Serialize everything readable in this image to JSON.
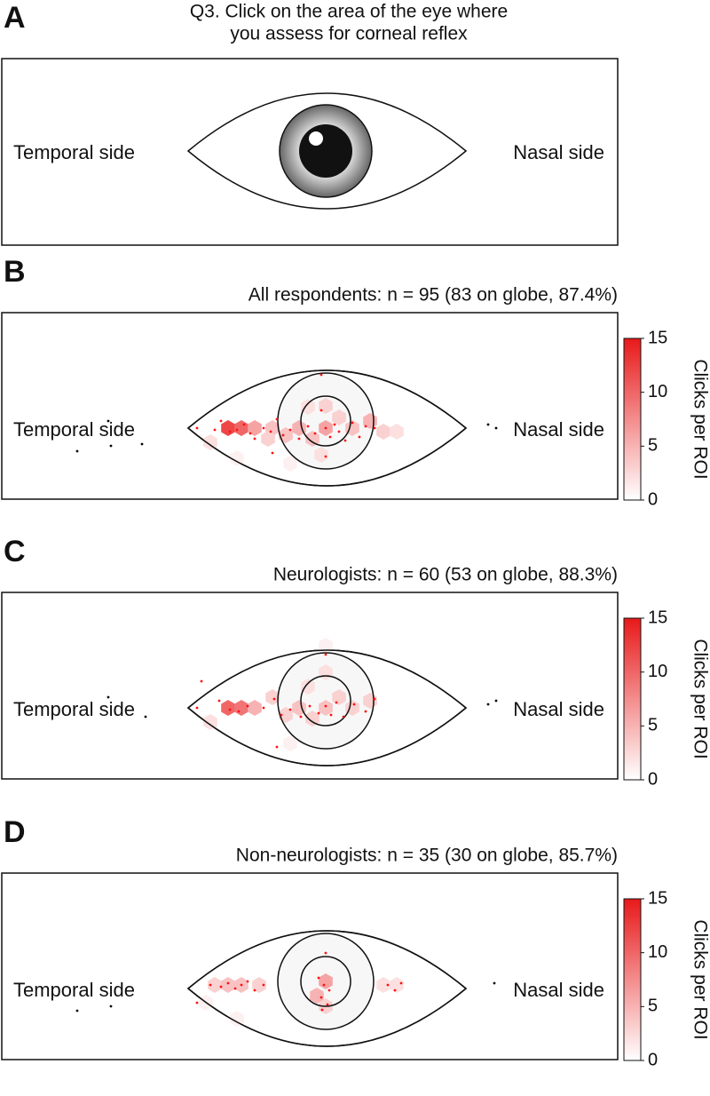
{
  "chart_data": [
    {
      "type": "diagram",
      "letter": "A",
      "title": [
        "Q3. Click on the area of the eye where",
        "you assess for corneal reflex"
      ],
      "left_label": "Temporal side",
      "right_label": "Nasal side"
    },
    {
      "type": "hexbin",
      "letter": "B",
      "title": "All respondents: n = 95 (83 on globe, 87.4%)",
      "left_label": "Temporal side",
      "right_label": "Nasal side",
      "colorbar_label": "Clicks per ROI",
      "zlim": [
        0,
        15
      ],
      "zticks": [
        0,
        5,
        10,
        15
      ],
      "color": "#e8191a",
      "xlim": [
        -365,
        329
      ],
      "ylim": [
        -130,
        80
      ],
      "cells": {
        "x": [
          -110,
          -95,
          -80,
          -60,
          -45,
          -65,
          -30,
          -15,
          0,
          15,
          0,
          30,
          50,
          65,
          -130,
          -100,
          -40,
          -5,
          -20,
          80
        ],
        "y": [
          0,
          0,
          0,
          0,
          8,
          12,
          0,
          12,
          0,
          -12,
          -25,
          0,
          -8,
          4,
          16,
          34,
          40,
          30,
          -24,
          4
        ],
        "values": [
          12,
          10,
          6,
          4,
          4,
          3,
          5,
          4,
          6,
          3,
          3,
          4,
          5,
          3,
          2,
          1,
          1,
          2,
          2,
          2
        ]
      },
      "on_globe": {
        "color": "#ff1010",
        "x": [
          -145,
          -125,
          -118,
          -108,
          -100,
          -92,
          -85,
          -70,
          -62,
          -55,
          -48,
          -40,
          -30,
          -20,
          -12,
          -5,
          0,
          5,
          10,
          15,
          22,
          30,
          38,
          45,
          55,
          -5,
          0,
          -60,
          -80
        ],
        "y": [
          0,
          2,
          -8,
          4,
          2,
          -4,
          6,
          0,
          4,
          -10,
          8,
          2,
          12,
          -2,
          6,
          -20,
          0,
          10,
          -4,
          4,
          14,
          -6,
          10,
          -2,
          0,
          -60,
          32,
          28,
          12
        ]
      },
      "off_globe": {
        "color": "#000000",
        "x": [
          -245,
          -280,
          -242,
          -207,
          183,
          192
        ],
        "y": [
          -8,
          26,
          20,
          18,
          -4,
          0
        ]
      }
    },
    {
      "type": "hexbin",
      "letter": "C",
      "title": "Neurologists: n = 60 (53 on globe, 88.3%)",
      "left_label": "Temporal side",
      "right_label": "Nasal side",
      "colorbar_label": "Clicks per ROI",
      "zlim": [
        0,
        15
      ],
      "zticks": [
        0,
        5,
        10,
        15
      ],
      "color": "#e8191a",
      "xlim": [
        -365,
        329
      ],
      "ylim": [
        -130,
        80
      ],
      "cells": {
        "x": [
          -110,
          -95,
          -80,
          -60,
          -45,
          -30,
          -15,
          0,
          15,
          0,
          30,
          50,
          -130,
          -40,
          -20,
          0
        ],
        "y": [
          0,
          0,
          0,
          -12,
          8,
          0,
          12,
          0,
          -12,
          -40,
          0,
          -8,
          16,
          40,
          -24,
          -70
        ],
        "values": [
          10,
          9,
          5,
          3,
          3,
          4,
          3,
          4,
          3,
          2,
          3,
          3,
          2,
          1,
          2,
          1
        ]
      },
      "on_globe": {
        "color": "#ff1010",
        "x": [
          -145,
          -120,
          -108,
          -98,
          -88,
          -70,
          -58,
          -50,
          -40,
          -28,
          -18,
          -8,
          0,
          6,
          12,
          20,
          32,
          45,
          55,
          0,
          -55,
          -140
        ],
        "y": [
          0,
          -8,
          2,
          4,
          -2,
          0,
          -10,
          8,
          2,
          10,
          -2,
          6,
          -2,
          8,
          -6,
          10,
          -4,
          4,
          -10,
          -60,
          44,
          -30
        ]
      },
      "off_globe": {
        "color": "#000000",
        "x": [
          -245,
          -203,
          183,
          192
        ],
        "y": [
          -12,
          10,
          -4,
          -8
        ]
      }
    },
    {
      "type": "hexbin",
      "letter": "D",
      "title": "Non-neurologists: n = 35 (30 on globe, 85.7%)",
      "left_label": "Temporal side",
      "right_label": "Nasal side",
      "colorbar_label": "Clicks per ROI",
      "zlim": [
        0,
        15
      ],
      "zticks": [
        0,
        5,
        10,
        15
      ],
      "color": "#e8191a",
      "xlim": [
        -365,
        329
      ],
      "ylim": [
        -130,
        80
      ],
      "cells": {
        "x": [
          -125,
          -110,
          -95,
          -75,
          0,
          -10,
          0,
          65,
          80,
          -135,
          -100
        ],
        "y": [
          -4,
          -4,
          -4,
          -4,
          -8,
          8,
          20,
          -4,
          -4,
          16,
          34
        ],
        "values": [
          3,
          4,
          4,
          3,
          6,
          5,
          3,
          2,
          2,
          1,
          1
        ]
      },
      "on_globe": {
        "color": "#ff1010",
        "x": [
          -130,
          -118,
          -110,
          -102,
          -95,
          -88,
          -80,
          -70,
          -8,
          -2,
          4,
          -5,
          2,
          -4,
          70,
          78,
          85,
          0,
          -145
        ],
        "y": [
          -4,
          -2,
          -6,
          0,
          -4,
          -8,
          2,
          -4,
          -12,
          -4,
          2,
          10,
          18,
          24,
          -4,
          2,
          -6,
          -40,
          16
        ]
      },
      "off_globe": {
        "color": "#000000",
        "x": [
          -280,
          -242,
          190
        ],
        "y": [
          25,
          20,
          -6
        ]
      }
    }
  ]
}
